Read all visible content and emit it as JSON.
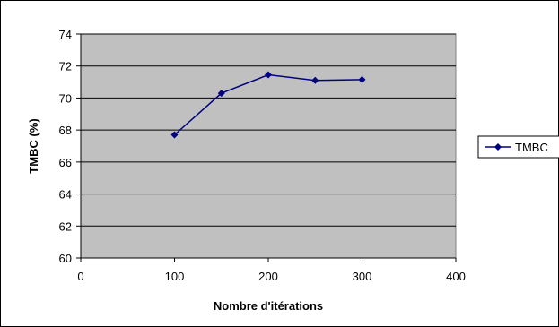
{
  "chart_data": {
    "type": "line",
    "xlabel": "Nombre d'itérations",
    "ylabel": "TMBC (%)",
    "xlim": [
      0,
      400
    ],
    "ylim": [
      60,
      74
    ],
    "x_ticks": [
      0,
      100,
      200,
      300,
      400
    ],
    "y_ticks": [
      60,
      62,
      64,
      66,
      68,
      70,
      72,
      74
    ],
    "grid": "horizontal",
    "legend_position": "right",
    "colors": {
      "series": "#000080",
      "plot_background": "#c0c0c0",
      "gridline": "#000000"
    },
    "series": [
      {
        "name": "TMBC",
        "x": [
          100,
          150,
          200,
          250,
          300
        ],
        "y": [
          67.7,
          70.3,
          71.45,
          71.1,
          71.15
        ]
      }
    ]
  }
}
